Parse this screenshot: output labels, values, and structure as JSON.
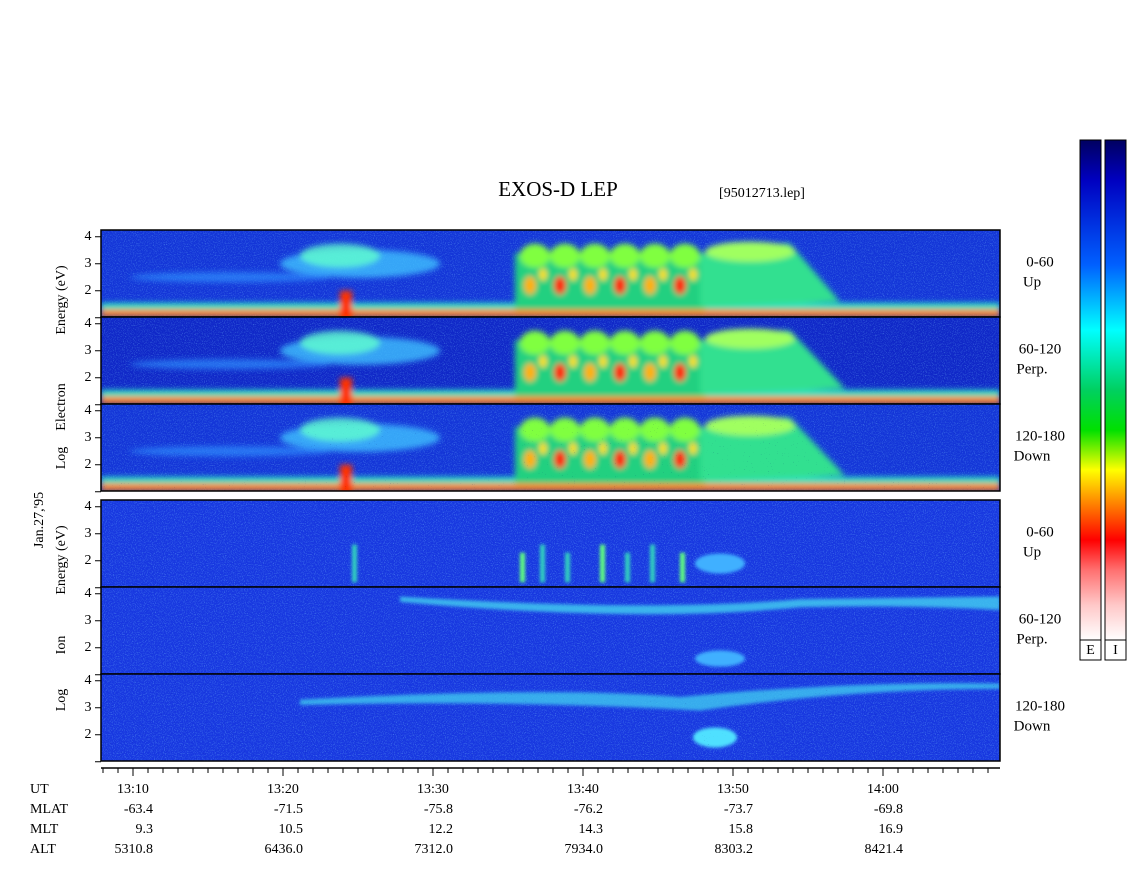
{
  "header": {
    "title": "EXOS-D LEP",
    "file": "[95012713.lep]"
  },
  "date": "Jan.27,'95",
  "panels": [
    {
      "axis_label": [
        "Log",
        "Electron",
        "Energy (eV)"
      ],
      "subpanels": [
        {
          "angle": "0-60",
          "direction": "Up"
        },
        {
          "angle": "60-120",
          "direction": "Perp."
        },
        {
          "angle": "120-180",
          "direction": "Down"
        }
      ],
      "yticks": [
        2,
        3,
        4
      ]
    },
    {
      "axis_label": [
        "Log",
        "Ion",
        "Energy (eV)"
      ],
      "subpanels": [
        {
          "angle": "0-60",
          "direction": "Up"
        },
        {
          "angle": "60-120",
          "direction": "Perp."
        },
        {
          "angle": "120-180",
          "direction": "Down"
        }
      ],
      "yticks": [
        2,
        3,
        4
      ]
    }
  ],
  "time_axis": {
    "rows": [
      {
        "label": "UT",
        "values": [
          "13:10",
          "13:20",
          "13:30",
          "13:40",
          "13:50",
          "14:00"
        ]
      },
      {
        "label": "MLAT",
        "values": [
          "-63.4",
          "-71.5",
          "-75.8",
          "-76.2",
          "-73.7",
          "-69.8"
        ]
      },
      {
        "label": "MLT",
        "values": [
          "9.3",
          "10.5",
          "12.2",
          "14.3",
          "15.8",
          "16.9"
        ]
      },
      {
        "label": "ALT",
        "values": [
          "5310.8",
          "6436.0",
          "7312.0",
          "7934.0",
          "8303.2",
          "8421.4"
        ]
      }
    ]
  },
  "colorbars": [
    "E",
    "I"
  ]
}
